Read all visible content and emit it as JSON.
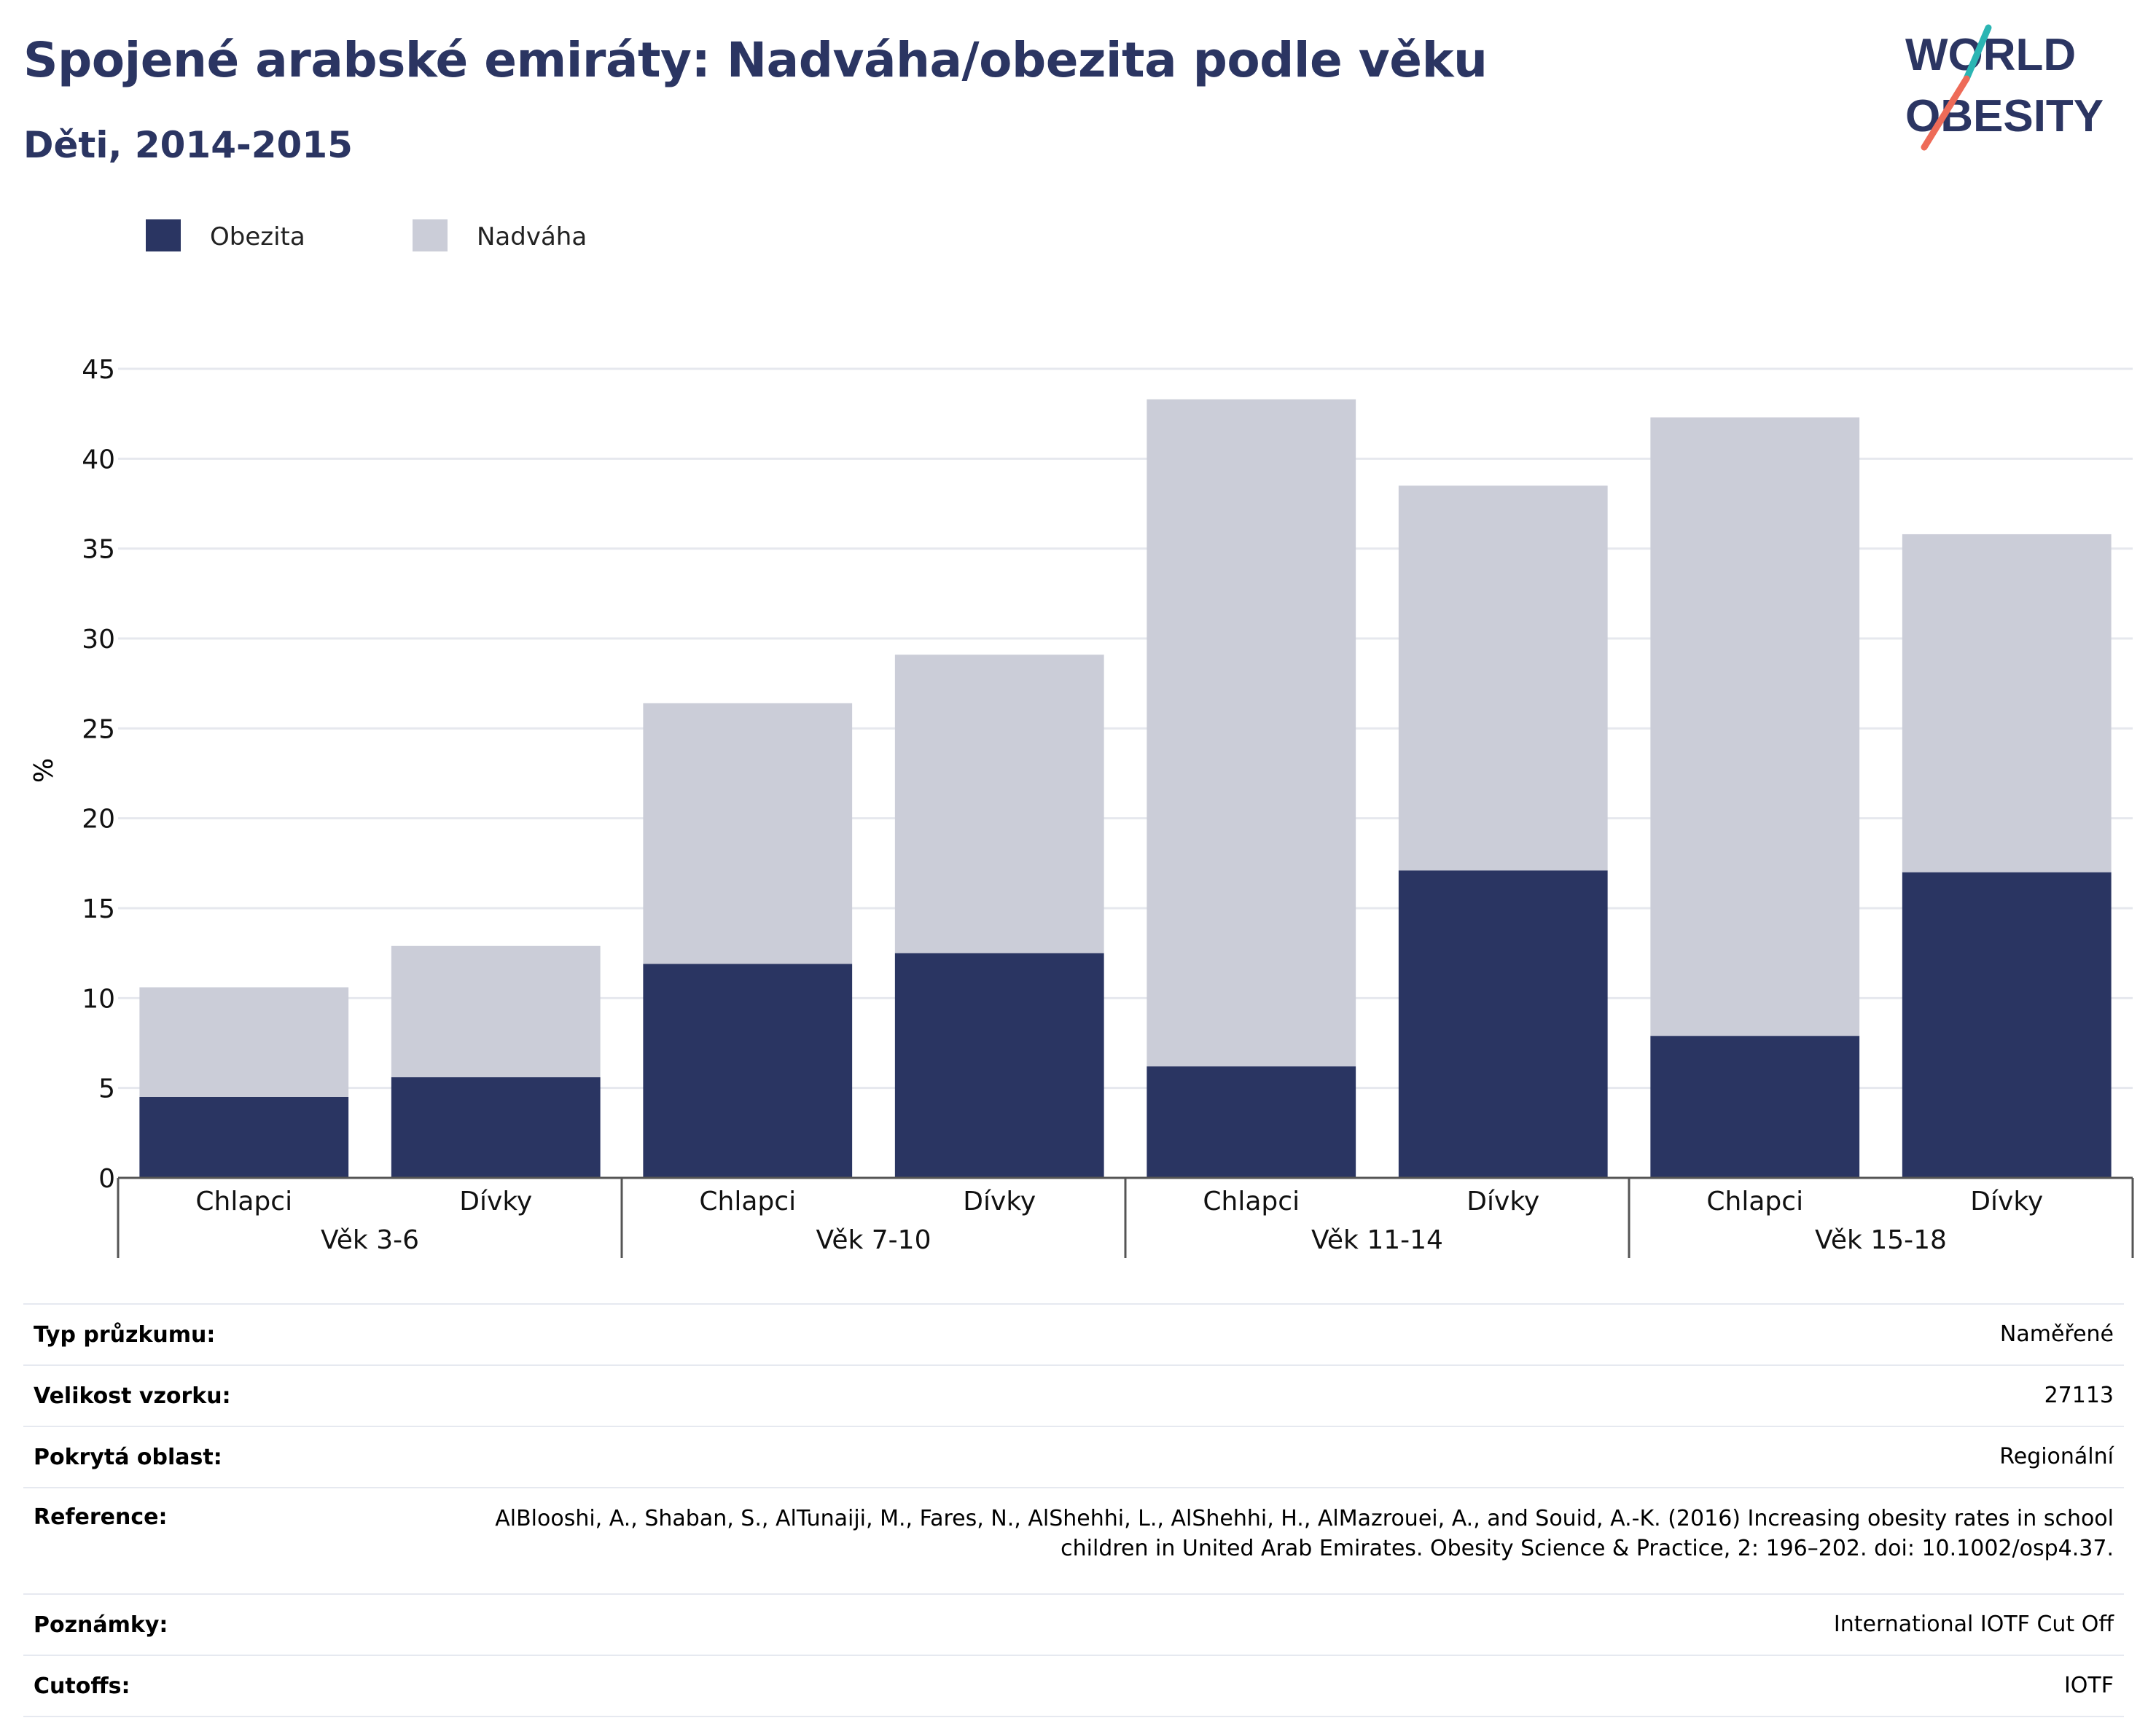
{
  "title": "Spojené arabské emiráty: Nadváha/obezita podle věku",
  "subtitle": "Děti, 2014-2015",
  "logo": {
    "line1": "WORLD",
    "line2": "OBESITY",
    "colors": {
      "text": "#2b3562",
      "slash_top": "#2bb5b3",
      "slash_bottom": "#ee6b58"
    }
  },
  "colors": {
    "obezita": "#2a3562",
    "nadvaha": "#cbcdd8",
    "grid": "#e6e8ee",
    "axis": "#555555"
  },
  "chart_data": {
    "type": "bar",
    "stacked": true,
    "ylabel": "%",
    "ylim": [
      0,
      45
    ],
    "yticks": [
      0,
      5,
      10,
      15,
      20,
      25,
      30,
      35,
      40,
      45
    ],
    "grid": true,
    "legend_position": "top-left",
    "groups": [
      "Věk 3-6",
      "Věk 7-10",
      "Věk 11-14",
      "Věk 15-18"
    ],
    "categories": [
      "Chlapci",
      "Dívky",
      "Chlapci",
      "Dívky",
      "Chlapci",
      "Dívky",
      "Chlapci",
      "Dívky"
    ],
    "series": [
      {
        "name": "Obezita",
        "values": [
          4.5,
          5.6,
          11.9,
          12.5,
          6.2,
          17.1,
          7.9,
          17.0
        ]
      },
      {
        "name": "Nadváha",
        "values": [
          6.1,
          7.3,
          14.5,
          16.6,
          37.1,
          21.4,
          34.4,
          18.8
        ]
      }
    ]
  },
  "info": [
    {
      "label": "Typ průzkumu:",
      "value": "Naměřené"
    },
    {
      "label": "Velikost vzorku:",
      "value": "27113"
    },
    {
      "label": "Pokrytá oblast:",
      "value": "Regionální"
    },
    {
      "label": "Reference:",
      "value": "AlBlooshi, A., Shaban, S., AlTunaiji, M., Fares, N., AlShehhi, L., AlShehhi, H., AlMazrouei, A., and Souid, A.-K. (2016) Increasing obesity rates in school children in United Arab Emirates. Obesity Science & Practice, 2: 196–202. doi: 10.1002/osp4.37."
    },
    {
      "label": "Poznámky:",
      "value": "International IOTF Cut Off"
    },
    {
      "label": "Cutoffs:",
      "value": "IOTF"
    }
  ]
}
